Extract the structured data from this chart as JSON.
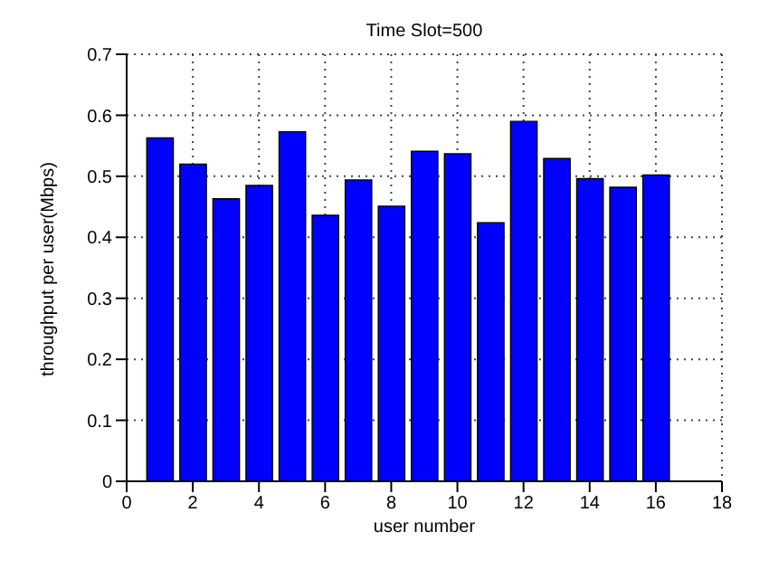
{
  "chart_data": {
    "type": "bar",
    "title": "Time Slot=500",
    "xlabel": "user number",
    "ylabel": "throughput per user(Mbps)",
    "x": [
      1,
      2,
      3,
      4,
      5,
      6,
      7,
      8,
      9,
      10,
      11,
      12,
      13,
      14,
      15,
      16
    ],
    "values": [
      0.563,
      0.52,
      0.463,
      0.485,
      0.573,
      0.436,
      0.494,
      0.451,
      0.541,
      0.537,
      0.424,
      0.59,
      0.529,
      0.496,
      0.482,
      0.502
    ],
    "color": "#0000ff",
    "xlim": [
      0,
      18
    ],
    "xticks": [
      0,
      2,
      4,
      6,
      8,
      10,
      12,
      14,
      16,
      18
    ],
    "ylim": [
      0,
      0.7
    ],
    "yticks": [
      0,
      0.1,
      0.2,
      0.3,
      0.4,
      0.5,
      0.6,
      0.7
    ],
    "grid": true
  }
}
